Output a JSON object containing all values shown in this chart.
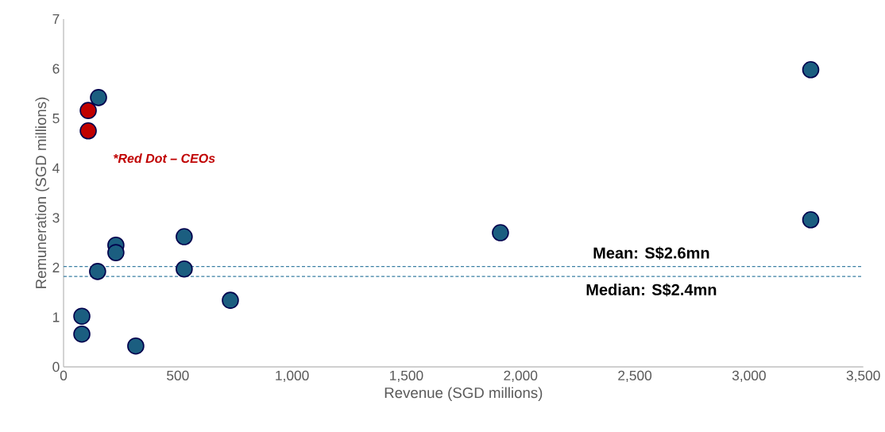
{
  "chart_data": {
    "type": "scatter",
    "xlabel": "Revenue (SGD millions)",
    "ylabel": "Remuneration (SGD millions)",
    "xlim": [
      0,
      3500
    ],
    "ylim": [
      0,
      7
    ],
    "xticks": [
      0,
      500,
      {
        "value": 1000,
        "label": "1,000"
      },
      {
        "value": 1500,
        "label": "1,500"
      },
      {
        "value": 2000,
        "label": "2,000"
      },
      {
        "value": 2500,
        "label": "2,500"
      },
      {
        "value": 3000,
        "label": "3,000"
      },
      {
        "value": 3500,
        "label": "3,500"
      }
    ],
    "yticks": [
      0,
      1,
      2,
      3,
      4,
      5,
      6,
      7
    ],
    "marker": "circle",
    "grid": false,
    "series": [
      {
        "color": "#1b5e80",
        "x": [
          3270,
          3270,
          1912,
          153,
          229,
          229,
          528,
          528,
          149,
          730,
          80,
          80,
          316
        ],
        "values": [
          5.98,
          2.96,
          2.7,
          5.42,
          2.45,
          2.3,
          2.62,
          1.97,
          1.92,
          1.34,
          1.02,
          0.66,
          0.42
        ]
      },
      {
        "color": "#c00000",
        "x": [
          108,
          108
        ],
        "values": [
          5.16,
          4.75
        ]
      }
    ],
    "ref_lines": [
      {
        "axis": "y",
        "value": 2.02,
        "label": "Mean: S$2.6mn",
        "color": "#3a7fa3",
        "line_style": "dashed"
      },
      {
        "axis": "y",
        "value": 1.82,
        "label": "Median: S$2.4mn",
        "color": "#3a7fa3",
        "line_style": "dashed"
      }
    ],
    "annotations": [
      "*Red Dot – CEOs"
    ]
  }
}
